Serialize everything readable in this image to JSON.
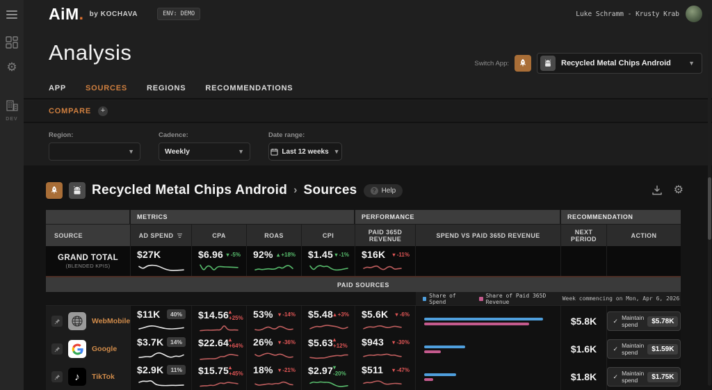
{
  "palette": {
    "orange": "#cf7f3f",
    "green": "#58bd6d",
    "red": "#de5555",
    "spark_green": "#58bd6d",
    "spark_red": "#c05e5e",
    "spark_white": "#e9e9e9",
    "blue": "#4f9fdd",
    "pink": "#c45a8d"
  },
  "topbar": {
    "logo": "AiM",
    "logo_dot": ".",
    "byline": "by KOCHAVA",
    "env_badge": "ENV: DEMO",
    "user": "Luke Schramm - Krusty Krab"
  },
  "sidebar": {
    "dev_label": "DEV"
  },
  "header": {
    "title": "Analysis",
    "switch_app_label": "Switch App:",
    "app_name": "Recycled Metal Chips Android"
  },
  "tabs": [
    {
      "label": "APP",
      "active": false
    },
    {
      "label": "SOURCES",
      "active": true
    },
    {
      "label": "REGIONS",
      "active": false
    },
    {
      "label": "RECOMMENDATIONS",
      "active": false
    }
  ],
  "compare": {
    "label": "COMPARE"
  },
  "filters": {
    "region_label": "Region:",
    "region_value": "",
    "cadence_label": "Cadence:",
    "cadence_value": "Weekly",
    "daterange_label": "Date range:",
    "daterange_value": "Last 12 weeks"
  },
  "content": {
    "app_name": "Recycled Metal Chips Android",
    "sep": "›",
    "page": "Sources",
    "help_label": "Help"
  },
  "table": {
    "group_headers": [
      "METRICS",
      "PERFORMANCE",
      "RECOMMENDATION"
    ],
    "columns": [
      "SOURCE",
      "AD SPEND",
      "CPA",
      "ROAS",
      "CPI",
      "PAID 365D REVENUE",
      "SPEND VS PAID 365D REVENUE",
      "NEXT PERIOD",
      "ACTION"
    ],
    "grand_total": {
      "label": "GRAND TOTAL",
      "sublabel": "(BLENDED KPIS)",
      "metrics": [
        {
          "value": "$27K",
          "spark_color": "white",
          "spark": [
            0.55,
            0.3,
            0.62,
            0.68,
            0.66,
            0.55,
            0.35,
            0.2,
            0.14,
            0.14,
            0.17,
            0.2
          ]
        },
        {
          "value": "$6.96",
          "change": "-5%",
          "dir": "down",
          "color": "green",
          "spark_color": "green",
          "spark": [
            0.7,
            0.08,
            0.62,
            0.58,
            0.1,
            0.52,
            0.55,
            0.5,
            0.5,
            0.48,
            0.46,
            0.44
          ]
        },
        {
          "value": "92%",
          "change": "+18%",
          "dir": "up",
          "color": "green",
          "spark_color": "green",
          "spark": [
            0.2,
            0.3,
            0.22,
            0.28,
            0.32,
            0.26,
            0.3,
            0.52,
            0.32,
            0.62,
            0.66,
            0.34
          ]
        },
        {
          "value": "$1.45",
          "change": "-1%",
          "dir": "down",
          "color": "green",
          "spark_color": "green",
          "spark": [
            0.6,
            0.15,
            0.55,
            0.66,
            0.5,
            0.62,
            0.36,
            0.2,
            0.18,
            0.22,
            0.3,
            0.36
          ]
        },
        {
          "value": "$16K",
          "change": "-11%",
          "dir": "down",
          "color": "red",
          "spark_color": "red",
          "spark": [
            0.35,
            0.5,
            0.4,
            0.55,
            0.62,
            0.3,
            0.2,
            0.5,
            0.56,
            0.25,
            0.32,
            0.35
          ]
        }
      ]
    },
    "section_label": "PAID SOURCES",
    "legend": [
      {
        "label": "Share of Spend",
        "color": "#4f9fdd"
      },
      {
        "label": "Share of Paid 365D Revenue",
        "color": "#c45a8d"
      }
    ],
    "week_label": "Week commencing on Mon, Apr 6, 2026",
    "rows": [
      {
        "name": "WebMobile",
        "icon": "webmobile",
        "metrics": [
          {
            "value": "$11K",
            "badge": "40%",
            "spark_color": "white",
            "spark": [
              0.28,
              0.38,
              0.52,
              0.6,
              0.56,
              0.46,
              0.35,
              0.29,
              0.27,
              0.3,
              0.33,
              0.4
            ]
          },
          {
            "value": "$14.56",
            "change": "+25%",
            "dir": "up",
            "color": "red",
            "spark_color": "red",
            "spark": [
              0.24,
              0.27,
              0.3,
              0.28,
              0.3,
              0.32,
              0.3,
              0.85,
              0.34,
              0.3,
              0.32,
              0.3
            ]
          },
          {
            "value": "53%",
            "change": "-14%",
            "dir": "down",
            "color": "red",
            "spark_color": "red",
            "spark": [
              0.2,
              0.14,
              0.2,
              0.4,
              0.5,
              0.3,
              0.25,
              0.55,
              0.5,
              0.3,
              0.2,
              0.26
            ]
          },
          {
            "value": "$5.48",
            "change": "+3%",
            "dir": "up",
            "color": "red",
            "spark_color": "red",
            "spark": [
              0.3,
              0.45,
              0.55,
              0.48,
              0.6,
              0.66,
              0.6,
              0.55,
              0.5,
              0.34,
              0.3,
              0.45
            ]
          },
          {
            "value": "$5.6K",
            "change": "-6%",
            "dir": "down",
            "color": "red",
            "spark_color": "red",
            "spark": [
              0.3,
              0.45,
              0.5,
              0.44,
              0.56,
              0.6,
              0.48,
              0.4,
              0.46,
              0.56,
              0.5,
              0.44
            ]
          }
        ],
        "bars": {
          "spend": 93,
          "revenue": 82
        },
        "next": "$5.8K",
        "action": {
          "label": "Maintain spend",
          "value": "$5.78K"
        }
      },
      {
        "name": "Google",
        "icon": "google",
        "metrics": [
          {
            "value": "$3.7K",
            "badge": "14%",
            "spark_color": "white",
            "spark": [
              0.2,
              0.24,
              0.3,
              0.24,
              0.58,
              0.7,
              0.54,
              0.3,
              0.2,
              0.36,
              0.28,
              0.46
            ]
          },
          {
            "value": "$22.64",
            "change": "+64%",
            "dir": "up",
            "color": "red",
            "spark_color": "red",
            "spark": [
              0.15,
              0.18,
              0.2,
              0.22,
              0.2,
              0.26,
              0.46,
              0.4,
              0.6,
              0.66,
              0.6,
              0.54
            ]
          },
          {
            "value": "26%",
            "change": "-36%",
            "dir": "down",
            "color": "red",
            "spark_color": "red",
            "spark": [
              0.5,
              0.3,
              0.45,
              0.6,
              0.64,
              0.5,
              0.4,
              0.56,
              0.5,
              0.3,
              0.2,
              0.26
            ]
          },
          {
            "value": "$5.63",
            "change": "+12%",
            "dir": "up",
            "color": "red",
            "spark_color": "red",
            "spark": [
              0.34,
              0.3,
              0.25,
              0.3,
              0.28,
              0.36,
              0.46,
              0.5,
              0.56,
              0.5,
              0.6,
              0.6
            ]
          },
          {
            "value": "$943",
            "change": "-30%",
            "dir": "down",
            "color": "red",
            "spark_color": "red",
            "spark": [
              0.3,
              0.4,
              0.46,
              0.4,
              0.5,
              0.44,
              0.5,
              0.56,
              0.4,
              0.46,
              0.34,
              0.3
            ]
          }
        ],
        "bars": {
          "spend": 32,
          "revenue": 13
        },
        "next": "$1.6K",
        "action": {
          "label": "Maintain spend",
          "value": "$1.59K"
        }
      },
      {
        "name": "TikTok",
        "icon": "tiktok",
        "metrics": [
          {
            "value": "$2.9K",
            "badge": "11%",
            "spark_color": "white",
            "spark": [
              0.5,
              0.64,
              0.58,
              0.7,
              0.3,
              0.2,
              0.17,
              0.17,
              0.2,
              0.18,
              0.2,
              0.22
            ]
          },
          {
            "value": "$15.75",
            "change": "+45%",
            "dir": "up",
            "color": "red",
            "spark_color": "red",
            "spark": [
              0.25,
              0.3,
              0.28,
              0.36,
              0.3,
              0.46,
              0.6,
              0.5,
              0.66,
              0.6,
              0.56,
              0.5
            ]
          },
          {
            "value": "18%",
            "change": "-21%",
            "dir": "down",
            "color": "red",
            "spark_color": "red",
            "spark": [
              0.34,
              0.2,
              0.25,
              0.3,
              0.36,
              0.3,
              0.4,
              0.35,
              0.55,
              0.5,
              0.3,
              0.25
            ]
          },
          {
            "value": "$2.97",
            "change": "-20%",
            "dir": "down",
            "color": "green",
            "spark_color": "green",
            "spark": [
              0.55,
              0.7,
              0.6,
              0.7,
              0.64,
              0.66,
              0.6,
              0.4,
              0.25,
              0.2,
              0.25,
              0.3
            ]
          },
          {
            "value": "$511",
            "change": "-47%",
            "dir": "down",
            "color": "red",
            "spark_color": "red",
            "spark": [
              0.4,
              0.5,
              0.45,
              0.56,
              0.65,
              0.6,
              0.35,
              0.3,
              0.35,
              0.4,
              0.38,
              0.34
            ]
          }
        ],
        "bars": {
          "spend": 25,
          "revenue": 7
        },
        "next": "$1.8K",
        "action": {
          "label": "Maintain spend",
          "value": "$1.75K"
        }
      }
    ]
  }
}
